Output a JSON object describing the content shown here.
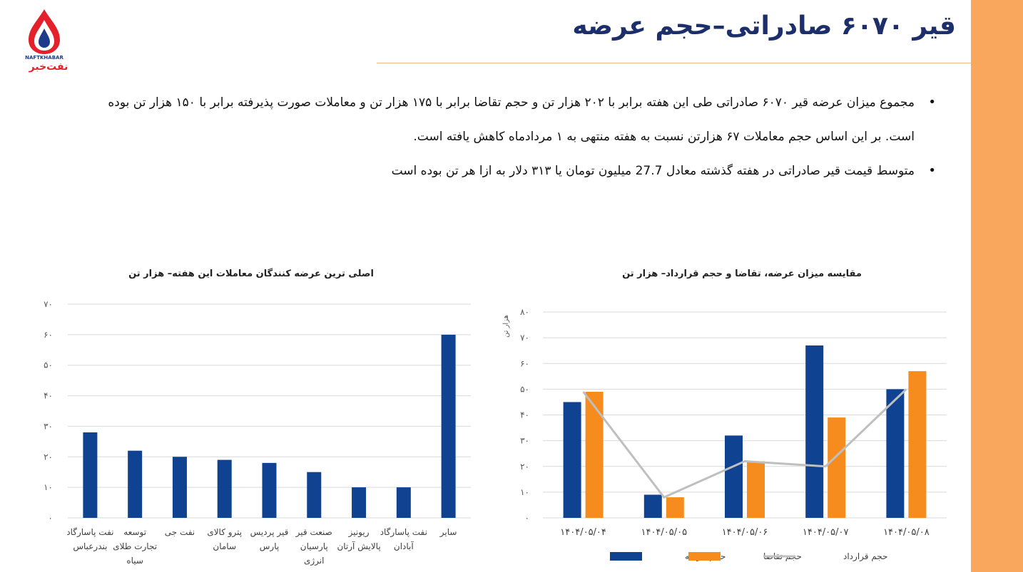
{
  "header": {
    "title": "قیر ۶۰۷۰ صادراتی–حجم عرضه",
    "logo_text": "NAFTKHABAR",
    "logo_text_fa": "نفت‌خبر"
  },
  "bullets": [
    "مجموع میزان عرضه قیر ۶۰۷۰ صادراتی طی این هفته برابر با ۲۰۲ هزار تن و حجم تقاضا برابر با ۱۷۵ هزار تن و معاملات صورت پذیرفته برابر با ۱۵۰ هزار تن بوده است. بر این اساس حجم معاملات ۶۷ هزارتن نسبت به هفته منتهی به ۱ مردادماه کاهش یافته است.",
    "متوسط قیمت قیر صادراتی در هفته گذشته معادل 27.7 میلیون تومان یا ۳۱۳ دلار به ازا هر تن بوده است"
  ],
  "colors": {
    "accent": "#F9A75C",
    "title": "#1C2F6B",
    "bar_blue": "#0F4392",
    "bar_orange": "#F68B1E",
    "line_gray": "#BFBFBF"
  },
  "chart_data": [
    {
      "type": "bar",
      "title": "اصلی ترین عرضه کنندگان معاملات این هفته– هزار تن",
      "categories": [
        [
          "نفت پاسارگاد",
          "بندرعباس"
        ],
        [
          "توسعه",
          "تجارت طلای",
          "سیاه"
        ],
        [
          "نفت جی"
        ],
        [
          "پترو کالای",
          "سامان"
        ],
        [
          "قیر پردیس",
          "پارس"
        ],
        [
          "صنعت قیر",
          "پارسیان",
          "انرژی"
        ],
        [
          "ریونیز",
          "پالایش آرتان"
        ],
        [
          "نفت پاسارگاد",
          "آبادان"
        ],
        [
          "سایر"
        ]
      ],
      "values": [
        28,
        22,
        20,
        19,
        18,
        15,
        10,
        10,
        60
      ],
      "ylim": [
        0,
        70
      ],
      "yticks": [
        "۰",
        "۱۰",
        "۲۰",
        "۳۰",
        "۴۰",
        "۵۰",
        "۶۰",
        "۷۰"
      ],
      "grid": true
    },
    {
      "type": "bar",
      "title": "مقایسه میزان عرضه، تقاضا و حجم قرارداد–  هزار تن",
      "ylabel": "هزار تن",
      "categories": [
        "۱۴۰۴/۰۵/۰۴",
        "۱۴۰۴/۰۵/۰۵",
        "۱۴۰۴/۰۵/۰۶",
        "۱۴۰۴/۰۵/۰۷",
        "۱۴۰۴/۰۵/۰۸"
      ],
      "series": [
        {
          "name": "حجم عرضه",
          "kind": "bar",
          "values": [
            45,
            9,
            32,
            67,
            50
          ]
        },
        {
          "name": "حجم تقاضا",
          "kind": "bar",
          "values": [
            49,
            8,
            22,
            39,
            57
          ]
        },
        {
          "name": "حجم قرارداد",
          "kind": "line",
          "values": [
            49,
            8,
            22,
            20,
            50
          ]
        }
      ],
      "ylim": [
        0,
        80
      ],
      "yticks": [
        "۰",
        "۱۰",
        "۲۰",
        "۳۰",
        "۴۰",
        "۵۰",
        "۶۰",
        "۷۰",
        "۸۰"
      ],
      "grid": true,
      "legend": "bottom"
    }
  ]
}
